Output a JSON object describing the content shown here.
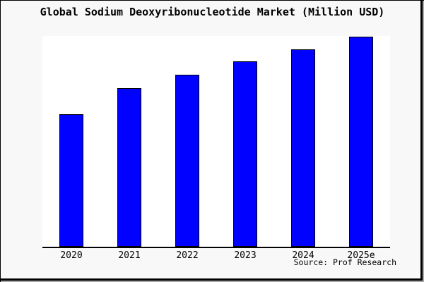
{
  "window": {
    "background_color": "#f8f8f8",
    "plot_background_color": "#ffffff",
    "frame_border_color": "#000000",
    "frame_shadow_color": "#a8a8a8"
  },
  "chart": {
    "title": "Global Sodium Deoxyribonucleotide Market (Million USD)",
    "source": "Source: Prof Research",
    "bar_color": "#0101ff",
    "bar_border_color": "#000000",
    "axis_color": "#000000"
  },
  "chart_data": {
    "type": "bar",
    "title": "Global Sodium Deoxyribonucleotide Market (Million USD)",
    "categories": [
      "2020",
      "2021",
      "2022",
      "2023",
      "2024",
      "2025e"
    ],
    "values": [
      62.8,
      75.2,
      81.5,
      87.8,
      93.8,
      99.8
    ],
    "value_units": "relative height, % of y-axis max (y-axis unlabeled in source image)",
    "xlabel": "",
    "ylabel": "",
    "ylim": [
      0,
      100
    ],
    "grid": false,
    "legend": false,
    "annotations": [
      "Source: Prof Research"
    ]
  }
}
